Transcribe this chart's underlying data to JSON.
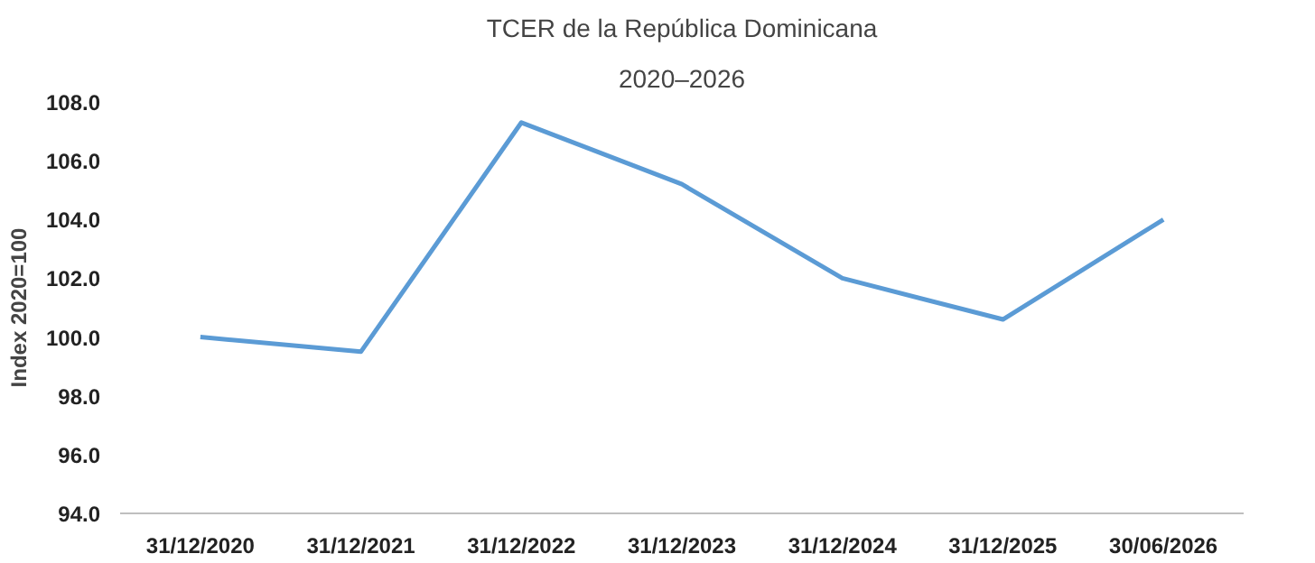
{
  "chart_data": {
    "type": "line",
    "title": "TCER de la República Dominicana",
    "subtitle": "2020–2026",
    "ylabel": "Index 2020=100",
    "categories": [
      "31/12/2020",
      "31/12/2021",
      "31/12/2022",
      "31/12/2023",
      "31/12/2024",
      "31/12/2025",
      "30/06/2026"
    ],
    "series": [
      {
        "color": "#5b9bd5",
        "values": [
          100.0,
          99.5,
          107.3,
          105.2,
          102.0,
          100.6,
          104.0
        ]
      }
    ],
    "ylim": [
      94,
      108
    ],
    "yticks": [
      {
        "value": 94,
        "label": "94.0"
      },
      {
        "value": 96,
        "label": "96.0"
      },
      {
        "value": 98,
        "label": "98.0"
      },
      {
        "value": 100,
        "label": "100.0"
      },
      {
        "value": 102,
        "label": "102.0"
      },
      {
        "value": 104,
        "label": "104.0"
      },
      {
        "value": 106,
        "label": "106.0"
      },
      {
        "value": 108,
        "label": "108.0"
      }
    ],
    "marker": "none",
    "line_style": "solid"
  }
}
